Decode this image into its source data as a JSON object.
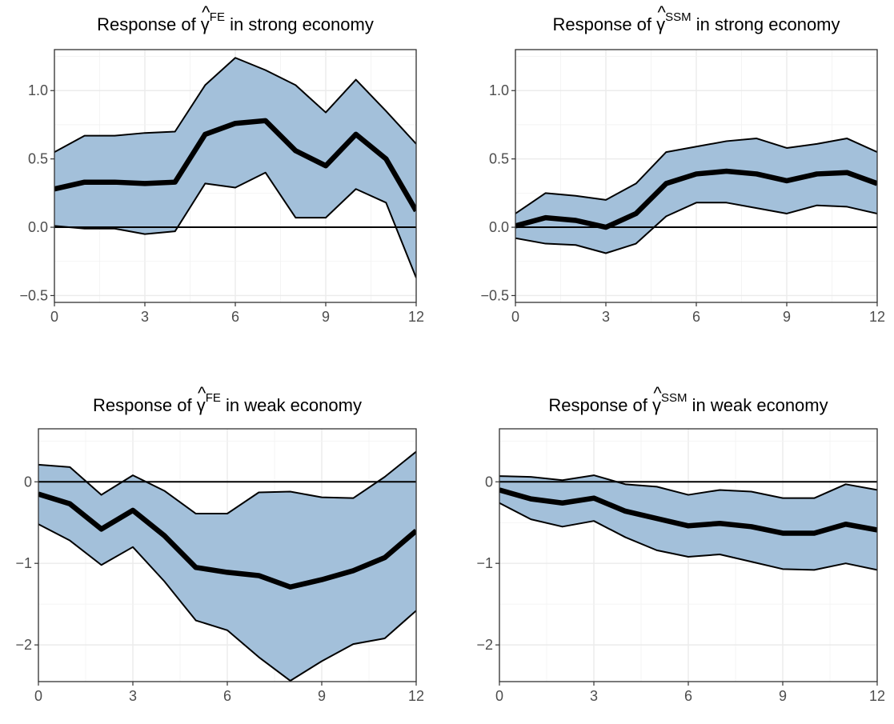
{
  "chart_data": [
    {
      "type": "area",
      "title": {
        "prefix": "Response of ",
        "symbol": "γ",
        "hat": "^",
        "superscript": "FE",
        "suffix": " in strong economy"
      },
      "xlabel": "",
      "ylabel": "",
      "xlim": [
        0,
        12
      ],
      "ylim": [
        -0.55,
        1.3
      ],
      "xticks": [
        0,
        3,
        6,
        9,
        12
      ],
      "yticks": [
        -0.5,
        0.0,
        0.5,
        1.0
      ],
      "ytick_labels": [
        "−0.5",
        "0.0",
        "0.5",
        "1.0"
      ],
      "x": [
        0,
        1,
        2,
        3,
        4,
        5,
        6,
        7,
        8,
        9,
        10,
        11,
        12
      ],
      "series": [
        {
          "values": [
            0.28,
            0.33,
            0.33,
            0.32,
            0.33,
            0.68,
            0.76,
            0.78,
            0.56,
            0.45,
            0.68,
            0.5,
            0.12
          ]
        },
        {
          "values": [
            0.55,
            0.67,
            0.67,
            0.69,
            0.7,
            1.04,
            1.24,
            1.15,
            1.04,
            0.84,
            1.08,
            0.85,
            0.61
          ]
        },
        {
          "values": [
            0.01,
            -0.01,
            -0.01,
            -0.05,
            -0.03,
            0.32,
            0.29,
            0.4,
            0.07,
            0.07,
            0.28,
            0.18,
            -0.37
          ]
        }
      ],
      "reference_line": 0,
      "grid": true,
      "band_color": "#a3c0da",
      "line_color": "#000000"
    },
    {
      "type": "area",
      "title": {
        "prefix": "Response of ",
        "symbol": "γ",
        "hat": "^",
        "superscript": "SSM",
        "suffix": " in strong economy"
      },
      "xlabel": "",
      "ylabel": "",
      "xlim": [
        0,
        12
      ],
      "ylim": [
        -0.55,
        1.3
      ],
      "xticks": [
        0,
        3,
        6,
        9,
        12
      ],
      "yticks": [
        -0.5,
        0.0,
        0.5,
        1.0
      ],
      "ytick_labels": [
        "−0.5",
        "0.0",
        "0.5",
        "1.0"
      ],
      "x": [
        0,
        1,
        2,
        3,
        4,
        5,
        6,
        7,
        8,
        9,
        10,
        11,
        12
      ],
      "series": [
        {
          "values": [
            0.01,
            0.07,
            0.05,
            0.0,
            0.1,
            0.32,
            0.39,
            0.41,
            0.39,
            0.34,
            0.39,
            0.4,
            0.32
          ]
        },
        {
          "values": [
            0.1,
            0.25,
            0.23,
            0.2,
            0.32,
            0.55,
            0.59,
            0.63,
            0.65,
            0.58,
            0.61,
            0.65,
            0.55
          ]
        },
        {
          "values": [
            -0.08,
            -0.12,
            -0.13,
            -0.19,
            -0.12,
            0.08,
            0.18,
            0.18,
            0.14,
            0.1,
            0.16,
            0.15,
            0.1
          ]
        }
      ],
      "reference_line": 0,
      "grid": true,
      "band_color": "#a3c0da",
      "line_color": "#000000"
    },
    {
      "type": "area",
      "title": {
        "prefix": "Response of ",
        "symbol": "γ",
        "hat": "^",
        "superscript": "FE",
        "suffix": " in weak economy"
      },
      "xlabel": "",
      "ylabel": "",
      "xlim": [
        0,
        12
      ],
      "ylim": [
        -2.45,
        0.65
      ],
      "xticks": [
        0,
        3,
        6,
        9,
        12
      ],
      "yticks": [
        -2,
        -1,
        0
      ],
      "ytick_labels": [
        "−2",
        "−1",
        "0"
      ],
      "x": [
        0,
        1,
        2,
        3,
        4,
        5,
        6,
        7,
        8,
        9,
        10,
        11,
        12
      ],
      "series": [
        {
          "values": [
            -0.15,
            -0.27,
            -0.58,
            -0.35,
            -0.66,
            -1.05,
            -1.11,
            -1.15,
            -1.29,
            -1.2,
            -1.09,
            -0.93,
            -0.6
          ]
        },
        {
          "values": [
            0.21,
            0.18,
            -0.16,
            0.08,
            -0.11,
            -0.39,
            -0.39,
            -0.13,
            -0.12,
            -0.19,
            -0.2,
            0.06,
            0.37
          ]
        },
        {
          "values": [
            -0.52,
            -0.72,
            -1.02,
            -0.8,
            -1.22,
            -1.7,
            -1.82,
            -2.15,
            -2.44,
            -2.2,
            -1.99,
            -1.92,
            -1.58
          ]
        }
      ],
      "reference_line": 0,
      "grid": true,
      "band_color": "#a3c0da",
      "line_color": "#000000"
    },
    {
      "type": "area",
      "title": {
        "prefix": "Response of ",
        "symbol": "γ",
        "hat": "^",
        "superscript": "SSM",
        "suffix": " in weak economy"
      },
      "xlabel": "",
      "ylabel": "",
      "xlim": [
        0,
        12
      ],
      "ylim": [
        -2.45,
        0.65
      ],
      "xticks": [
        0,
        3,
        6,
        9,
        12
      ],
      "yticks": [
        -2,
        -1,
        0
      ],
      "ytick_labels": [
        "−2",
        "−1",
        "0"
      ],
      "x": [
        0,
        1,
        2,
        3,
        4,
        5,
        6,
        7,
        8,
        9,
        10,
        11,
        12
      ],
      "series": [
        {
          "values": [
            -0.1,
            -0.21,
            -0.26,
            -0.2,
            -0.36,
            -0.45,
            -0.54,
            -0.51,
            -0.55,
            -0.63,
            -0.63,
            -0.52,
            -0.59
          ]
        },
        {
          "values": [
            0.07,
            0.06,
            0.02,
            0.08,
            -0.03,
            -0.06,
            -0.16,
            -0.1,
            -0.12,
            -0.2,
            -0.2,
            -0.03,
            -0.1
          ]
        },
        {
          "values": [
            -0.26,
            -0.46,
            -0.55,
            -0.48,
            -0.68,
            -0.84,
            -0.92,
            -0.89,
            -0.98,
            -1.07,
            -1.08,
            -1.0,
            -1.08
          ]
        }
      ],
      "reference_line": 0,
      "grid": true,
      "band_color": "#a3c0da",
      "line_color": "#000000"
    }
  ]
}
